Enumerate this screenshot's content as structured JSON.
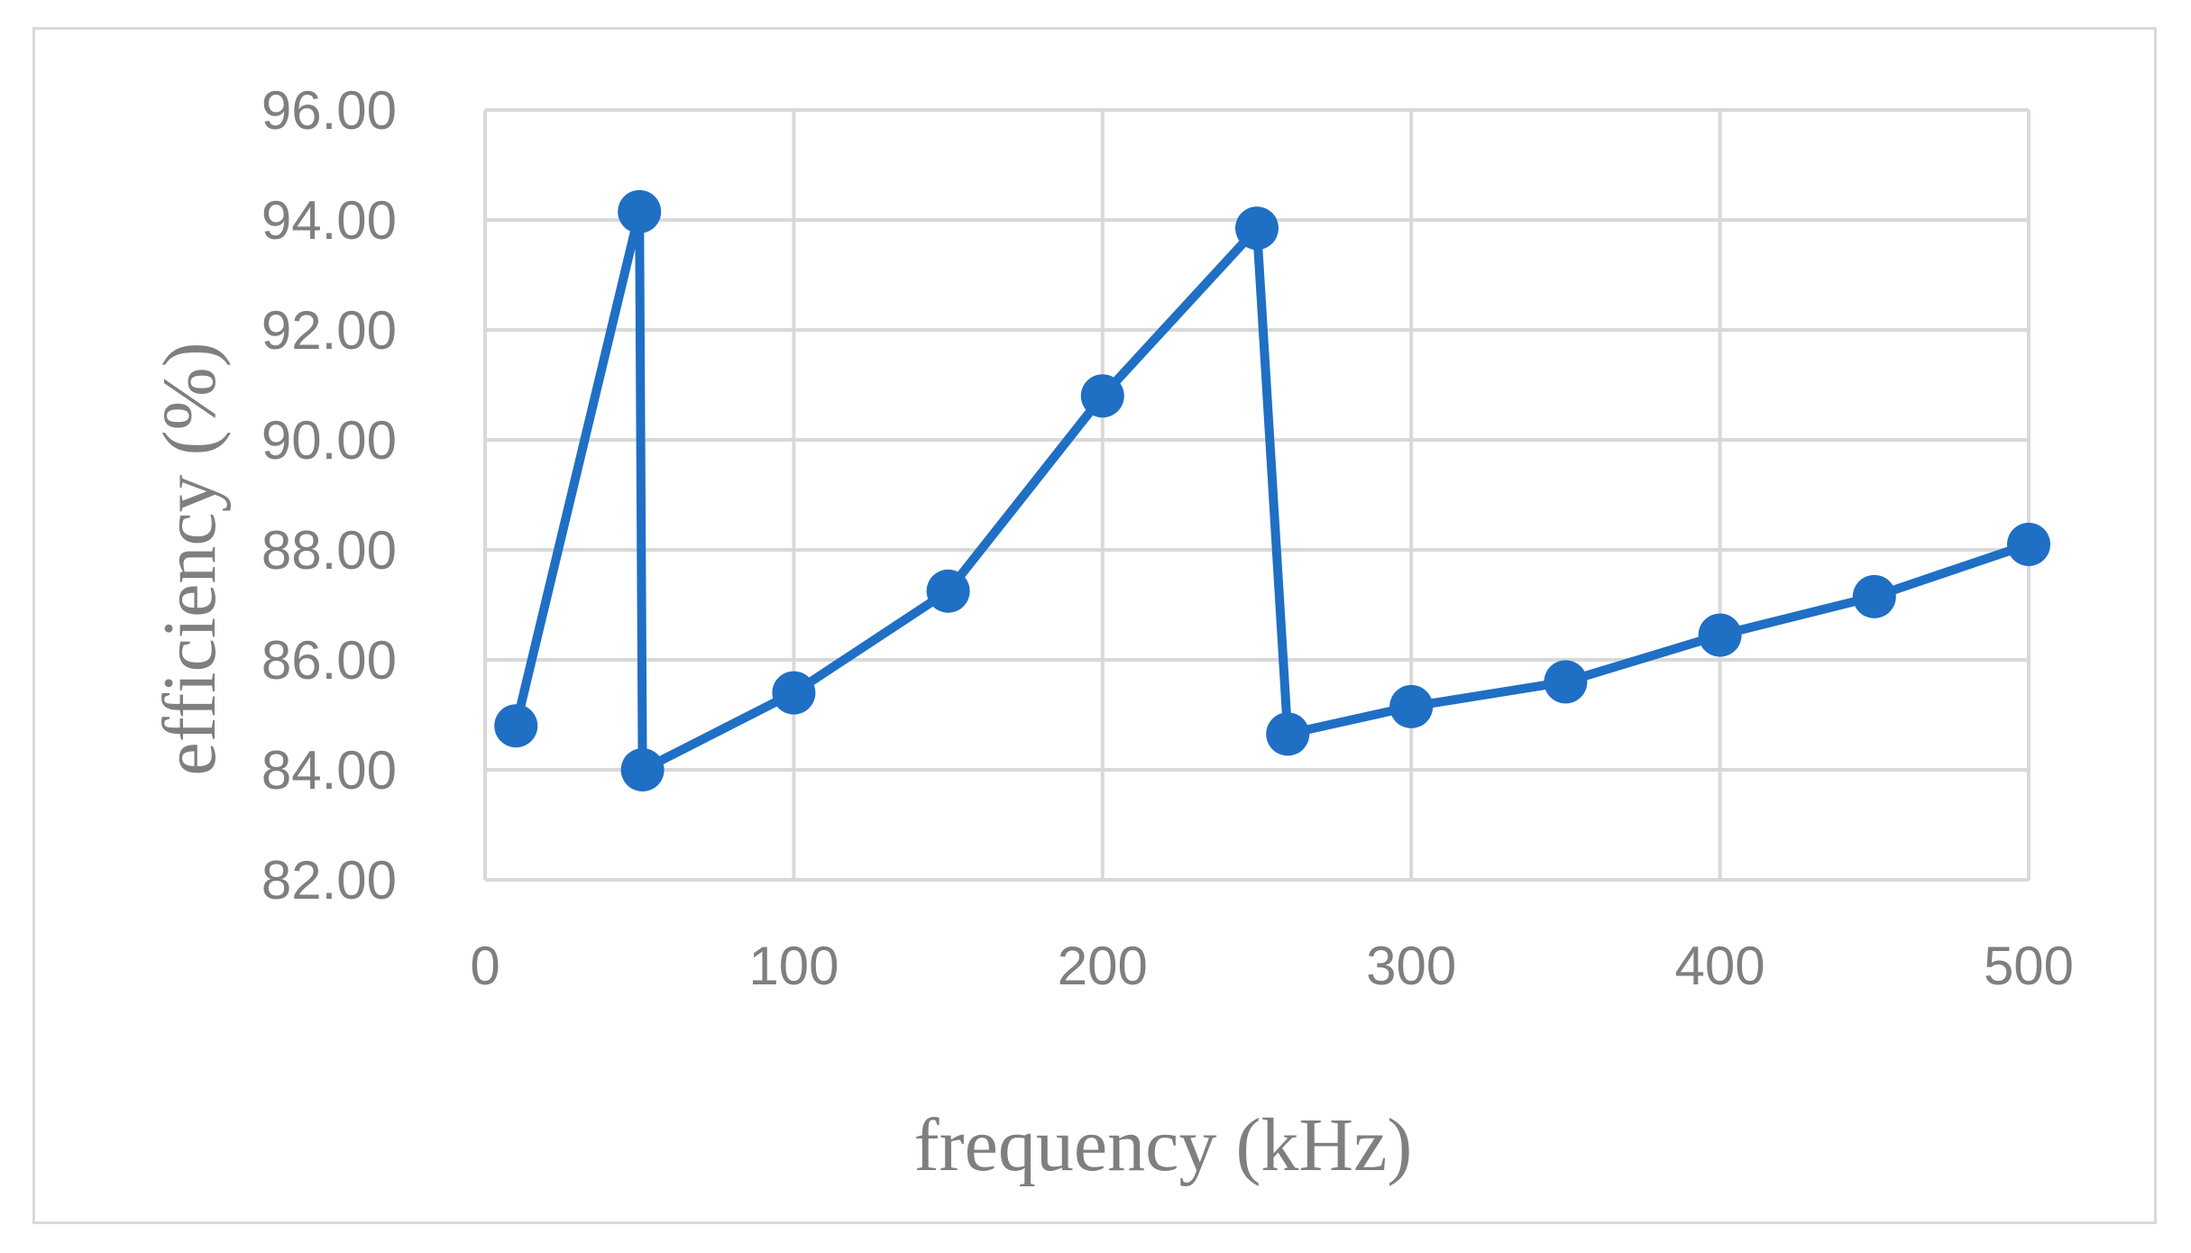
{
  "chart_data": {
    "type": "line",
    "title": "",
    "xlabel": "frequency (kHz)",
    "ylabel": "efficiency (%)",
    "xlim": [
      0,
      500
    ],
    "ylim": [
      82,
      96
    ],
    "xticks": [
      0,
      100,
      200,
      300,
      400,
      500
    ],
    "yticks": [
      "82.00",
      "84.00",
      "86.00",
      "88.00",
      "90.00",
      "92.00",
      "94.00",
      "96.00"
    ],
    "grid": true,
    "legend": "none",
    "series": [
      {
        "color": "#1f6fc5",
        "marker": "circle",
        "points": [
          {
            "x": 10,
            "y": 84.8
          },
          {
            "x": 50,
            "y": 94.15
          },
          {
            "x": 51,
            "y": 84.0
          },
          {
            "x": 100,
            "y": 85.4
          },
          {
            "x": 150,
            "y": 87.25
          },
          {
            "x": 200,
            "y": 90.8
          },
          {
            "x": 250,
            "y": 93.85
          },
          {
            "x": 260,
            "y": 84.65
          },
          {
            "x": 300,
            "y": 85.15
          },
          {
            "x": 350,
            "y": 85.6
          },
          {
            "x": 400,
            "y": 86.45
          },
          {
            "x": 450,
            "y": 87.15
          },
          {
            "x": 500,
            "y": 88.1
          }
        ]
      }
    ]
  }
}
